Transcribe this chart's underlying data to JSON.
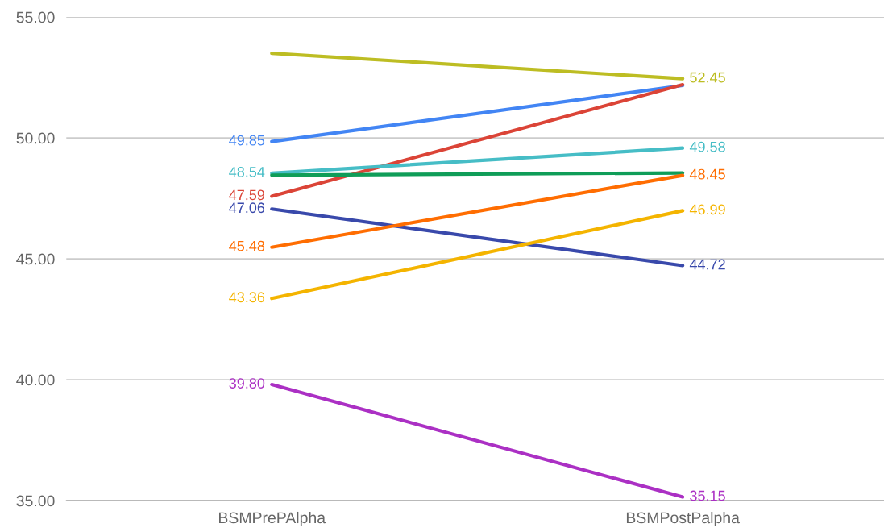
{
  "chart_data": {
    "type": "line",
    "categories": [
      "BSMPrePAlpha",
      "BSMPostPalpha"
    ],
    "ylim": [
      35,
      55
    ],
    "yticks": [
      {
        "value": 35,
        "label": "35.00"
      },
      {
        "value": 40,
        "label": "40.00"
      },
      {
        "value": 45,
        "label": "45.00"
      },
      {
        "value": 50,
        "label": "50.00"
      },
      {
        "value": 55,
        "label": "55.00"
      }
    ],
    "grid": "y",
    "marker": "none",
    "line_style": "solid",
    "series": [
      {
        "color": "#bdbd23",
        "values": [
          53.5,
          52.45
        ],
        "value_labels": [
          null,
          "52.45"
        ]
      },
      {
        "color": "#4285f4",
        "values": [
          49.85,
          52.17
        ],
        "value_labels": [
          "49.85",
          null
        ]
      },
      {
        "color": "#db4437",
        "values": [
          47.59,
          52.2
        ],
        "value_labels": [
          "47.59",
          null
        ]
      },
      {
        "color": "#46bdc6",
        "values": [
          48.54,
          49.58
        ],
        "value_labels": [
          "48.54",
          "49.58"
        ]
      },
      {
        "color": "#0f9d58",
        "values": [
          48.46,
          48.55
        ],
        "value_labels": [
          null,
          null
        ]
      },
      {
        "color": "#3949ab",
        "values": [
          47.06,
          44.72
        ],
        "value_labels": [
          "47.06",
          "44.72"
        ]
      },
      {
        "color": "#ff6d01",
        "values": [
          45.48,
          48.45
        ],
        "value_labels": [
          "45.48",
          "48.45"
        ]
      },
      {
        "color": "#f4b400",
        "values": [
          43.36,
          46.99
        ],
        "value_labels": [
          "43.36",
          "46.99"
        ]
      },
      {
        "color": "#ab30c4",
        "values": [
          39.8,
          35.15
        ],
        "value_labels": [
          "39.80",
          "35.15"
        ]
      }
    ]
  }
}
